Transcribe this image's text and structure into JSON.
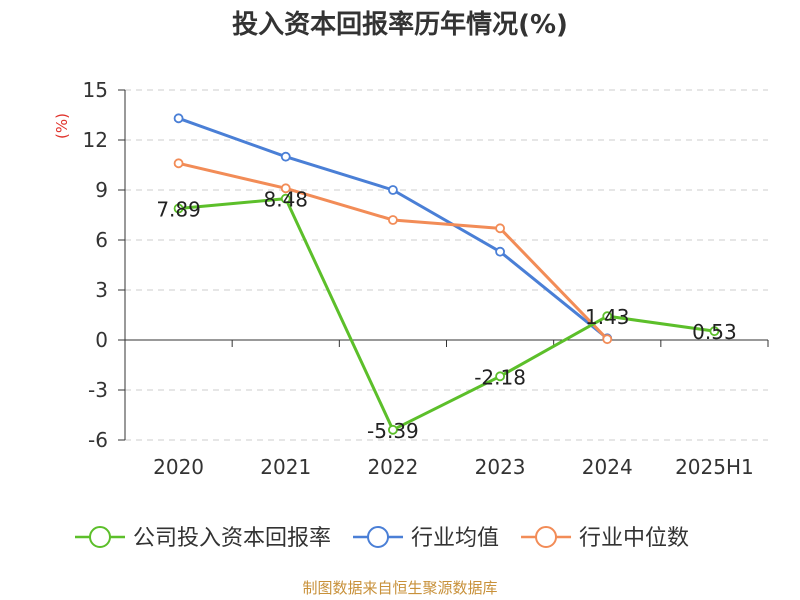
{
  "chart_data": {
    "type": "line",
    "title": "投入资本回报率历年情况(%)",
    "xlabel": "",
    "ylabel": "(%)",
    "categories": [
      "2020",
      "2021",
      "2022",
      "2023",
      "2024",
      "2025H1"
    ],
    "ylim": [
      -6,
      15
    ],
    "yticks": [
      15,
      12,
      9,
      6,
      3,
      0,
      -3,
      -6
    ],
    "grid": true,
    "legend_position": "bottom",
    "series": [
      {
        "name": "公司投入资本回报率",
        "color": "#5cbf2a",
        "values": [
          7.89,
          8.48,
          -5.39,
          -2.18,
          1.43,
          0.53
        ],
        "labels": [
          "7.89",
          "8.48",
          "-5.39",
          "-2.18",
          "1.43",
          "0.53"
        ]
      },
      {
        "name": "行业均值",
        "color": "#4a7fd6",
        "values": [
          13.3,
          11.0,
          9.0,
          5.3,
          0.1,
          null
        ]
      },
      {
        "name": "行业中位数",
        "color": "#f28c57",
        "values": [
          10.6,
          9.1,
          7.2,
          6.7,
          0.05,
          null
        ]
      }
    ]
  },
  "footer": {
    "source": "制图数据来自恒生聚源数据库"
  }
}
